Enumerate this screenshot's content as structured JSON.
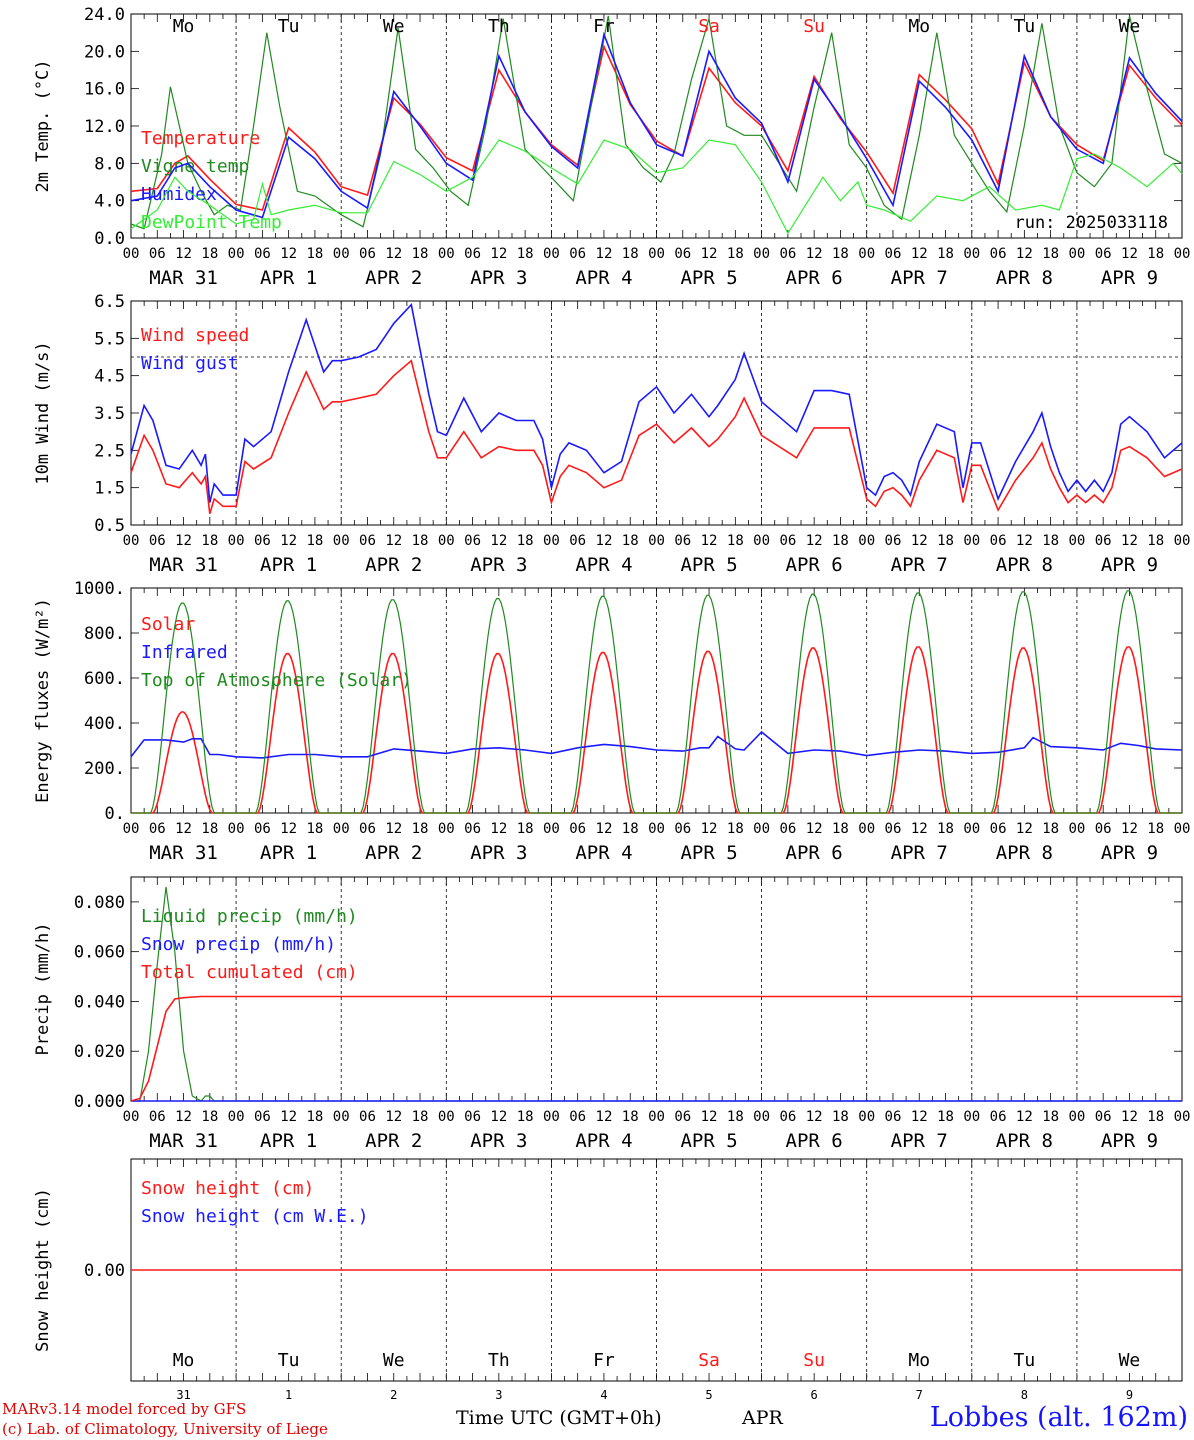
{
  "footer": {
    "model": "MARv3.14 model forced by GFS",
    "credit": "(c) Lab. of Climatology, University of Liege",
    "xlabel": "Time UTC (GMT+0h)",
    "month": "APR",
    "station": "Lobbes (alt. 162m)"
  },
  "colors": {
    "red": "#ff1a1a",
    "green": "#1f8a1f",
    "blue": "#1a1aff",
    "lightgreen": "#33ee33",
    "weekend": "#ff1a1a",
    "grid": "#000000"
  },
  "days": [
    "Mo",
    "Tu",
    "We",
    "Th",
    "Fr",
    "Sa",
    "Su",
    "Mo",
    "Tu",
    "We"
  ],
  "weekend_days": [
    5,
    6
  ],
  "date_labels": [
    "MAR 31",
    "APR  1",
    "APR  2",
    "APR  3",
    "APR  4",
    "APR  5",
    "APR  6",
    "APR  7",
    "APR  8",
    "APR  9"
  ],
  "bottom_day_numbers": [
    "31",
    "1",
    "2",
    "3",
    "4",
    "5",
    "6",
    "7",
    "8",
    "9"
  ],
  "hour_labels": [
    "00",
    "06",
    "12",
    "18"
  ],
  "chart_data": [
    {
      "type": "line",
      "ylabel": "2m Temp. (°C)",
      "ylim": [
        0,
        24
      ],
      "yticks": [
        "0.0",
        "4.0",
        "8.0",
        "12.0",
        "16.0",
        "20.0",
        "24.0"
      ],
      "annotation": "run: 2025033118",
      "x_unit": "hours since 2025-03-31 00 UTC",
      "series": [
        {
          "name": "Temperature",
          "color": "red",
          "x": [
            0,
            6,
            10,
            13,
            18,
            24,
            30,
            36,
            42,
            48,
            54,
            60,
            66,
            72,
            78,
            84,
            90,
            96,
            102,
            108,
            114,
            120,
            126,
            132,
            138,
            144,
            150,
            156,
            162,
            168,
            174,
            180,
            186,
            192,
            198,
            204,
            210,
            216,
            222,
            228,
            234,
            240
          ],
          "y": [
            5.0,
            5.3,
            8.0,
            8.8,
            6.3,
            3.6,
            3.0,
            11.8,
            9.2,
            5.5,
            4.6,
            15.0,
            12.2,
            8.6,
            7.2,
            18.0,
            13.5,
            10.0,
            7.8,
            20.5,
            14.3,
            10.4,
            8.8,
            18.2,
            14.5,
            12.0,
            7.2,
            17.3,
            12.8,
            9.2,
            4.8,
            17.5,
            14.8,
            11.7,
            5.8,
            18.8,
            13.0,
            10.0,
            8.3,
            18.5,
            15.0,
            12.1
          ]
        },
        {
          "name": "Vigne temp",
          "color": "green",
          "x": [
            0,
            3,
            7,
            9,
            13,
            16,
            19,
            22,
            25,
            28,
            31,
            34,
            38,
            42,
            48,
            53,
            57,
            61,
            65,
            69,
            73,
            77,
            81,
            85,
            90,
            94,
            98,
            101,
            105,
            109,
            113,
            117,
            121,
            124,
            128,
            132,
            136,
            140,
            144,
            148,
            152,
            156,
            160,
            164,
            168,
            172,
            176,
            180,
            184,
            188,
            192,
            196,
            200,
            204,
            208,
            212,
            216,
            220,
            224,
            228,
            232,
            236,
            240
          ],
          "y": [
            1.5,
            1.0,
            9.0,
            16.2,
            8.0,
            5.0,
            2.5,
            3.5,
            3.0,
            12.0,
            22.0,
            14.0,
            5.0,
            4.5,
            2.5,
            1.2,
            9.0,
            22.5,
            9.5,
            7.5,
            5.0,
            3.5,
            12.0,
            23.5,
            9.5,
            7.5,
            5.5,
            4.0,
            14.0,
            23.8,
            10.0,
            7.5,
            6.0,
            9.0,
            17.0,
            23.5,
            12.0,
            11.0,
            11.0,
            8.0,
            5.0,
            14.0,
            22.0,
            10.0,
            7.5,
            3.5,
            2.0,
            11.0,
            22.0,
            11.0,
            8.0,
            5.0,
            2.8,
            12.0,
            23.0,
            12.0,
            7.0,
            5.5,
            8.0,
            23.8,
            16.0,
            9.0,
            8.0
          ]
        },
        {
          "name": "Humidex",
          "color": "blue",
          "x": [
            0,
            6,
            10,
            13,
            18,
            24,
            30,
            36,
            42,
            48,
            54,
            60,
            66,
            72,
            78,
            84,
            90,
            96,
            102,
            108,
            114,
            120,
            126,
            132,
            138,
            144,
            150,
            156,
            162,
            168,
            174,
            180,
            186,
            192,
            198,
            204,
            210,
            216,
            222,
            228,
            234,
            240
          ],
          "y": [
            4.0,
            4.5,
            7.5,
            8.0,
            5.5,
            3.0,
            2.2,
            10.8,
            8.5,
            5.0,
            3.2,
            15.7,
            12.0,
            8.0,
            6.2,
            19.5,
            13.5,
            9.8,
            7.5,
            21.8,
            14.5,
            10.0,
            8.8,
            20.0,
            15.0,
            12.3,
            6.0,
            17.0,
            13.0,
            8.5,
            3.5,
            16.8,
            14.0,
            10.5,
            5.0,
            19.5,
            13.0,
            9.5,
            8.0,
            19.3,
            15.5,
            12.5
          ]
        },
        {
          "name": "DewPoint Temp",
          "color": "lightgreen",
          "x": [
            0,
            6,
            10,
            13,
            18,
            24,
            28,
            30,
            32,
            36,
            42,
            48,
            54,
            60,
            66,
            72,
            78,
            84,
            90,
            96,
            102,
            108,
            114,
            120,
            126,
            132,
            138,
            144,
            150,
            154,
            158,
            162,
            166,
            168,
            172,
            178,
            184,
            190,
            196,
            202,
            208,
            212,
            216,
            220,
            226,
            232,
            238,
            240
          ],
          "y": [
            1.0,
            3.0,
            6.5,
            5.0,
            3.5,
            1.5,
            2.0,
            5.8,
            2.5,
            3.0,
            3.5,
            2.7,
            2.7,
            8.2,
            6.8,
            5.0,
            6.5,
            10.5,
            9.3,
            7.5,
            5.8,
            10.5,
            9.5,
            7.0,
            7.5,
            10.5,
            10.0,
            6.0,
            0.5,
            3.5,
            6.5,
            4.0,
            6.0,
            3.5,
            3.0,
            1.8,
            4.5,
            4.0,
            5.5,
            3.0,
            3.5,
            3.0,
            8.5,
            9.0,
            7.5,
            5.5,
            8.0,
            6.9
          ]
        }
      ]
    },
    {
      "type": "line",
      "ylabel": "10m Wind (m/s)",
      "ylim": [
        0.5,
        6.5
      ],
      "yticks": [
        "0.5",
        "1.5",
        "2.5",
        "3.5",
        "4.5",
        "5.5",
        "6.5"
      ],
      "reference_line": 5.0,
      "series": [
        {
          "name": "Wind speed",
          "color": "red",
          "x": [
            0,
            3,
            5,
            8,
            11,
            14,
            16,
            17,
            18,
            19,
            21,
            24,
            26,
            28,
            32,
            36,
            40,
            44,
            46,
            48,
            52,
            56,
            60,
            64,
            68,
            70,
            72,
            76,
            80,
            84,
            88,
            92,
            94,
            96,
            98,
            100,
            104,
            108,
            112,
            116,
            120,
            124,
            128,
            132,
            134,
            138,
            140,
            144,
            148,
            152,
            156,
            160,
            164,
            168,
            170,
            172,
            174,
            176,
            178,
            180,
            184,
            188,
            190,
            192,
            194,
            198,
            202,
            206,
            208,
            210,
            212,
            214,
            216,
            218,
            220,
            222,
            224,
            226,
            228,
            232,
            236,
            240
          ],
          "y": [
            1.9,
            2.9,
            2.5,
            1.6,
            1.5,
            1.9,
            1.6,
            1.8,
            0.8,
            1.2,
            1.0,
            1.0,
            2.2,
            2.0,
            2.3,
            3.5,
            4.6,
            3.6,
            3.8,
            3.8,
            3.9,
            4.0,
            4.5,
            4.9,
            3.0,
            2.3,
            2.3,
            3.0,
            2.3,
            2.6,
            2.5,
            2.5,
            2.1,
            1.1,
            1.8,
            2.1,
            1.9,
            1.5,
            1.7,
            2.9,
            3.2,
            2.7,
            3.1,
            2.6,
            2.8,
            3.4,
            3.9,
            2.9,
            2.6,
            2.3,
            3.1,
            3.1,
            3.1,
            1.2,
            1.0,
            1.4,
            1.5,
            1.3,
            1.0,
            1.7,
            2.5,
            2.3,
            1.1,
            2.1,
            2.1,
            0.9,
            1.7,
            2.3,
            2.7,
            2.0,
            1.5,
            1.1,
            1.3,
            1.1,
            1.3,
            1.1,
            1.5,
            2.5,
            2.6,
            2.3,
            1.8,
            2.0
          ]
        },
        {
          "name": "Wind gust",
          "color": "blue",
          "x": [
            0,
            3,
            5,
            8,
            11,
            14,
            16,
            17,
            18,
            19,
            21,
            24,
            26,
            28,
            32,
            36,
            40,
            44,
            46,
            48,
            52,
            56,
            60,
            64,
            68,
            70,
            72,
            76,
            80,
            84,
            88,
            92,
            94,
            96,
            98,
            100,
            104,
            108,
            112,
            116,
            120,
            124,
            128,
            132,
            134,
            138,
            140,
            144,
            148,
            152,
            156,
            160,
            164,
            168,
            170,
            172,
            174,
            176,
            178,
            180,
            184,
            188,
            190,
            192,
            194,
            198,
            202,
            206,
            208,
            210,
            212,
            214,
            216,
            218,
            220,
            222,
            224,
            226,
            228,
            232,
            236,
            240
          ],
          "y": [
            2.4,
            3.7,
            3.3,
            2.1,
            2.0,
            2.5,
            2.1,
            2.4,
            1.1,
            1.6,
            1.3,
            1.3,
            2.8,
            2.6,
            3.0,
            4.6,
            6.0,
            4.6,
            4.9,
            4.9,
            5.0,
            5.2,
            5.9,
            6.4,
            4.0,
            3.0,
            2.9,
            3.9,
            3.0,
            3.5,
            3.3,
            3.3,
            2.8,
            1.5,
            2.4,
            2.7,
            2.5,
            1.9,
            2.2,
            3.8,
            4.2,
            3.5,
            4.0,
            3.4,
            3.7,
            4.4,
            5.1,
            3.8,
            3.4,
            3.0,
            4.1,
            4.1,
            4.0,
            1.5,
            1.3,
            1.8,
            1.9,
            1.7,
            1.3,
            2.2,
            3.2,
            3.0,
            1.5,
            2.7,
            2.7,
            1.2,
            2.2,
            3.0,
            3.5,
            2.6,
            1.9,
            1.4,
            1.7,
            1.4,
            1.7,
            1.4,
            1.9,
            3.2,
            3.4,
            3.0,
            2.3,
            2.7
          ]
        }
      ]
    },
    {
      "type": "line",
      "ylabel": "Energy fluxes (W/m²)",
      "ylim": [
        0,
        1000
      ],
      "yticks": [
        "0.",
        "200.",
        "400.",
        "600.",
        "800.",
        "1000."
      ],
      "series": [
        {
          "name": "Solar",
          "color": "red",
          "peaks": [
            450,
            710,
            710,
            710,
            715,
            720,
            735,
            740,
            735,
            740
          ],
          "rise_hour": 5,
          "set_hour": 18.5
        },
        {
          "name": "Infrared",
          "color": "blue",
          "x": [
            0,
            3,
            8,
            12,
            14,
            16,
            18,
            20,
            24,
            30,
            36,
            42,
            48,
            54,
            60,
            66,
            72,
            78,
            84,
            90,
            96,
            102,
            108,
            114,
            120,
            126,
            130,
            132,
            134,
            138,
            140,
            144,
            150,
            156,
            162,
            168,
            174,
            180,
            186,
            192,
            198,
            204,
            206,
            210,
            216,
            222,
            226,
            230,
            234,
            240
          ],
          "y": [
            250,
            325,
            325,
            315,
            330,
            330,
            260,
            260,
            250,
            245,
            260,
            260,
            250,
            250,
            285,
            275,
            265,
            285,
            290,
            280,
            265,
            290,
            305,
            295,
            280,
            275,
            290,
            290,
            340,
            285,
            280,
            360,
            265,
            280,
            275,
            255,
            270,
            280,
            275,
            265,
            270,
            290,
            335,
            295,
            290,
            280,
            310,
            300,
            285,
            280
          ]
        },
        {
          "name": "Top of Atmosphere (Solar)",
          "color": "green",
          "peaks": [
            935,
            945,
            950,
            955,
            965,
            970,
            975,
            980,
            985,
            990
          ],
          "rise_hour": 4.5,
          "set_hour": 19.0
        }
      ]
    },
    {
      "type": "line",
      "ylabel": "Precip (mm/h)",
      "ylim": [
        0,
        0.09
      ],
      "yticks": [
        "0.000",
        "0.020",
        "0.040",
        "0.060",
        "0.080"
      ],
      "series": [
        {
          "name": "Liquid precip (mm/h)",
          "color": "green",
          "x": [
            0,
            2,
            4,
            6,
            8,
            10,
            12,
            14,
            16,
            17,
            18,
            19,
            240
          ],
          "y": [
            0,
            0,
            0.02,
            0.055,
            0.086,
            0.06,
            0.02,
            0.002,
            0,
            0.002,
            0.002,
            0,
            0
          ]
        },
        {
          "name": "Snow precip (mm/h)",
          "color": "blue",
          "x": [
            0,
            240
          ],
          "y": [
            0,
            0
          ]
        },
        {
          "name": "Total cumulated (cm)",
          "color": "red",
          "x": [
            0,
            2,
            4,
            6,
            8,
            10,
            12,
            16,
            240
          ],
          "y": [
            0,
            0.001,
            0.008,
            0.022,
            0.036,
            0.041,
            0.0415,
            0.042,
            0.042
          ]
        }
      ]
    },
    {
      "type": "line",
      "ylabel": "Snow height (cm)",
      "ylim": [
        -1,
        1
      ],
      "yticks": [
        "0.00"
      ],
      "series": [
        {
          "name": "Snow height (cm)",
          "color": "red",
          "x": [
            0,
            240
          ],
          "y": [
            0,
            0
          ]
        },
        {
          "name": "Snow height (cm W.E.)",
          "color": "blue",
          "x": [],
          "y": []
        }
      ]
    }
  ]
}
